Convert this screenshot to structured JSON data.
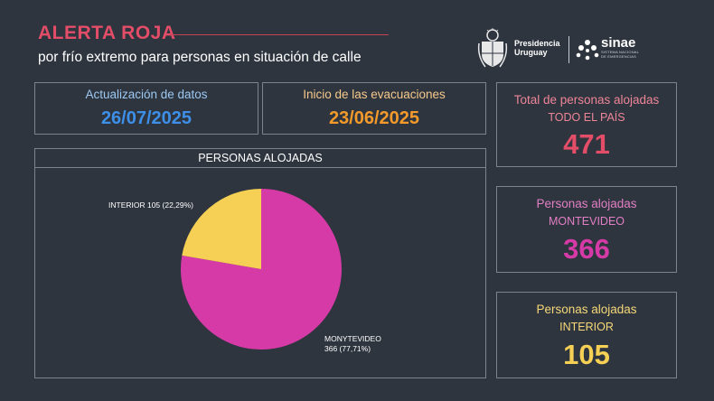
{
  "header": {
    "title": "ALERTA ROJA",
    "subtitle": "por frío extremo para personas en situación de calle",
    "accent_color": "#e34d67"
  },
  "logos": {
    "presidencia_line1": "Presidencia",
    "presidencia_line2": "Uruguay",
    "sinae_name": "sinae",
    "sinae_line1": "SISTEMA NACIONAL",
    "sinae_line2": "DE EMERGENCIAS",
    "presidencia_icon": "uruguay-coat-of-arms-icon",
    "sinae_icon": "sinae-dots-icon"
  },
  "update_box": {
    "label": "Actualización de datos",
    "value": "26/07/2025",
    "color": "#3d8fe8"
  },
  "evac_box": {
    "label": "Inicio de las evacuaciones",
    "value": "23/06/2025",
    "color": "#f39a2b"
  },
  "total_box": {
    "label": "Total de personas alojadas",
    "sublabel": "TODO EL PAÍS",
    "value": "471",
    "color": "#e34d67"
  },
  "montevideo_box": {
    "label": "Personas alojadas",
    "sublabel": "MONTEVIDEO",
    "value": "366",
    "color": "#d63aa6"
  },
  "interior_box": {
    "label": "Personas alojadas",
    "sublabel": "INTERIOR",
    "value": "105",
    "color": "#f6cf55"
  },
  "chart_data": {
    "type": "pie",
    "title": "PERSONAS ALOJADAS",
    "slices": [
      {
        "name": "MONYTEVIDEO",
        "value": 366,
        "percent_label": "366 (77,71%)",
        "color": "#d63aa6"
      },
      {
        "name": "INTERIOR",
        "value": 105,
        "percent_label": "105 (22,29%)",
        "color": "#f6cf55"
      }
    ],
    "interior_label": "INTERIOR 105 (22,29%)",
    "montevideo_label_line1": "MONYTEVIDEO",
    "montevideo_label_line2": "366 (77,71%)",
    "legend": "none"
  }
}
